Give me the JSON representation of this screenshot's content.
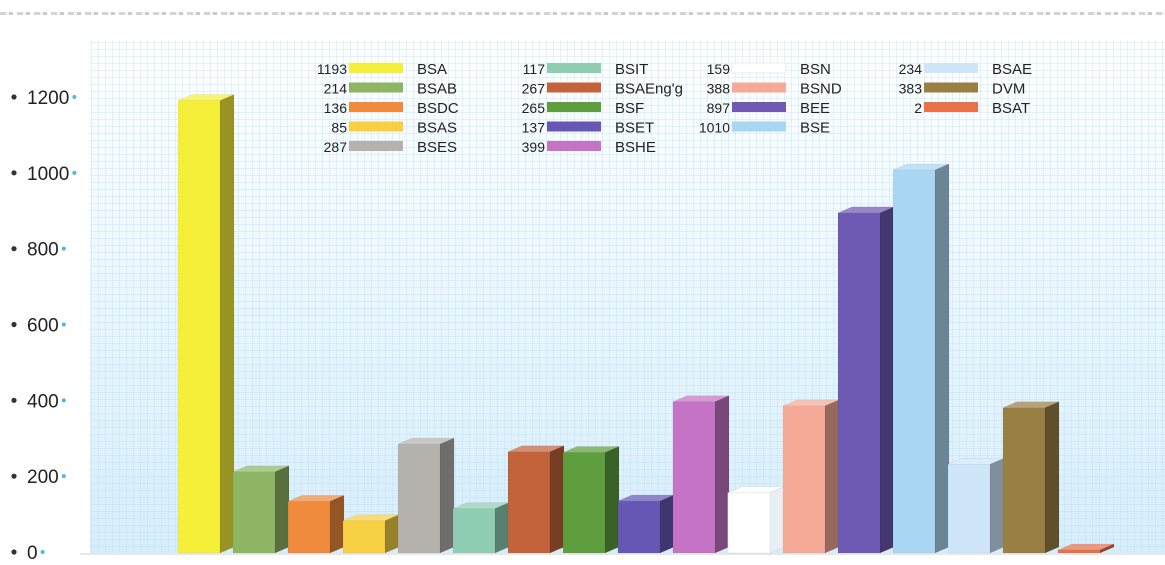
{
  "chart_data": {
    "type": "bar",
    "categories": [
      "BSA",
      "BSAB",
      "BSDC",
      "BSAS",
      "BSES",
      "BSIT",
      "BSAEng'g",
      "BSF",
      "BSET",
      "BSHE",
      "BSN",
      "BSND",
      "BEE",
      "BSE",
      "BSAE",
      "DVM",
      "BSAT"
    ],
    "values": [
      1193,
      214,
      136,
      85,
      287,
      117,
      267,
      265,
      137,
      399,
      159,
      388,
      897,
      1010,
      234,
      383,
      2
    ],
    "legend_values": [
      "1193",
      "214",
      "136",
      "85",
      "287",
      "117",
      "267",
      "265",
      "137",
      "399",
      "159",
      "388",
      "897",
      "1010",
      "234",
      "383",
      "2"
    ],
    "colors": [
      "#f5ef3a",
      "#8db563",
      "#f08a3c",
      "#f6cf43",
      "#b5b2ad",
      "#8fcdb2",
      "#c2633b",
      "#5e9e3f",
      "#6657b5",
      "#c573c4",
      "#ffffff",
      "#f4aa96",
      "#6e59b3",
      "#a9d6f2",
      "#cfe6fa",
      "#9a7f45",
      "#e8714a"
    ],
    "y_ticks": [
      0,
      200,
      400,
      600,
      800,
      1000,
      1200
    ],
    "ylim": [
      0,
      1250
    ],
    "legend_columns": [
      [
        "BSA",
        "BSAB",
        "BSDC",
        "BSAS",
        "BSES"
      ],
      [
        "BSIT",
        "BSAEng'g",
        "BSF",
        "BSET",
        "BSHE"
      ],
      [
        "BSN",
        "BSND",
        "BEE",
        "BSE"
      ],
      [
        "BSAE",
        "DVM",
        "BSAT"
      ]
    ],
    "grid": true,
    "legend_position": "top"
  }
}
